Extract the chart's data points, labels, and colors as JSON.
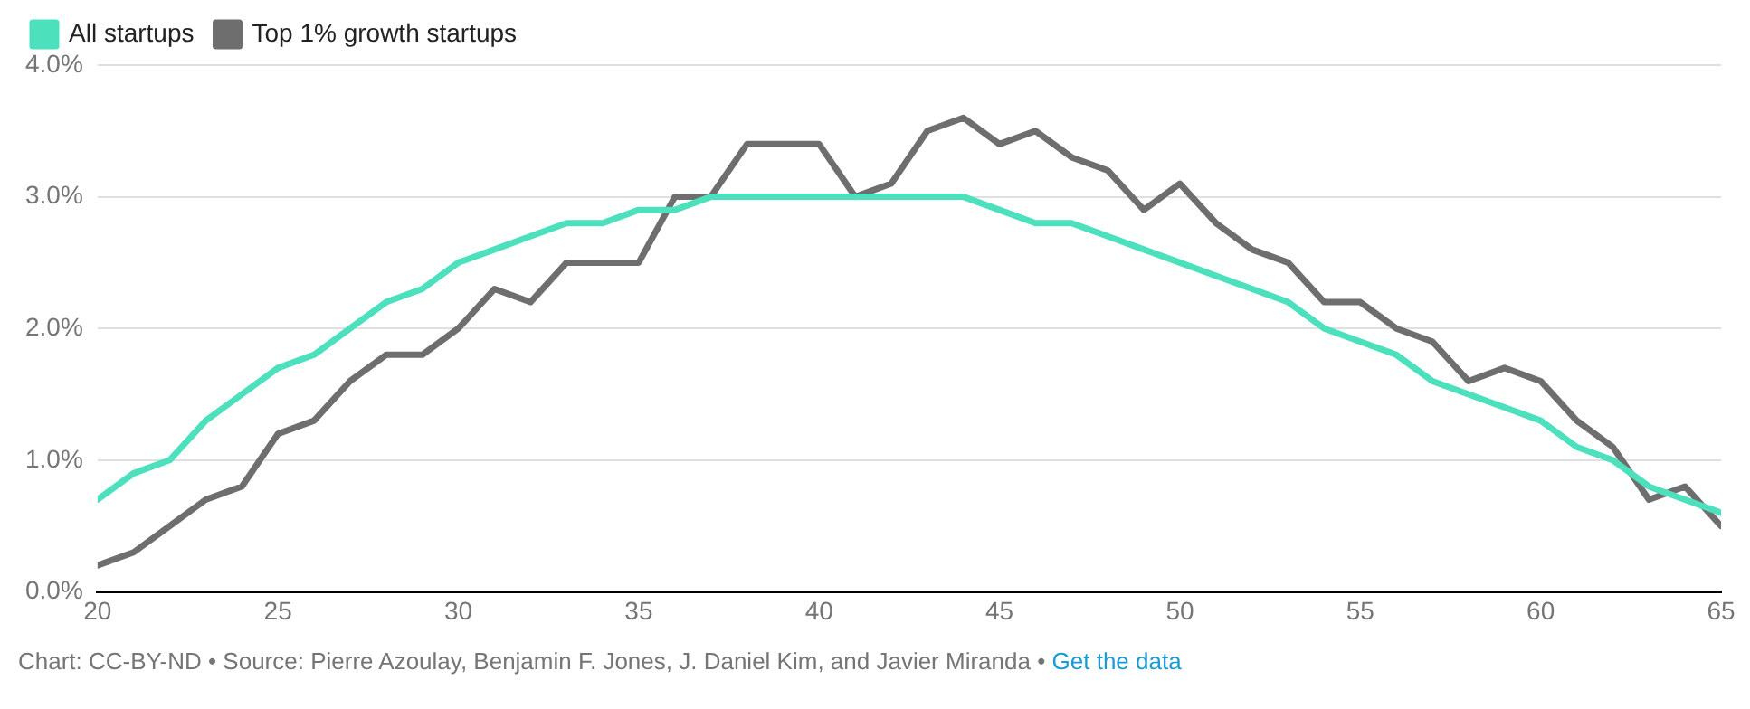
{
  "chart_data": {
    "type": "line",
    "x": [
      20,
      21,
      22,
      23,
      24,
      25,
      26,
      27,
      28,
      29,
      30,
      31,
      32,
      33,
      34,
      35,
      36,
      37,
      38,
      39,
      40,
      41,
      42,
      43,
      44,
      45,
      46,
      47,
      48,
      49,
      50,
      51,
      52,
      53,
      54,
      55,
      56,
      57,
      58,
      59,
      60,
      61,
      62,
      63,
      64,
      65
    ],
    "series": [
      {
        "name": "All startups",
        "color": "#4de0bd",
        "values": [
          0.7,
          0.9,
          1.0,
          1.3,
          1.5,
          1.7,
          1.8,
          2.0,
          2.2,
          2.3,
          2.5,
          2.6,
          2.7,
          2.8,
          2.8,
          2.9,
          2.9,
          3.0,
          3.0,
          3.0,
          3.0,
          3.0,
          3.0,
          3.0,
          3.0,
          2.9,
          2.8,
          2.8,
          2.7,
          2.6,
          2.5,
          2.4,
          2.3,
          2.2,
          2.0,
          1.9,
          1.8,
          1.6,
          1.5,
          1.4,
          1.3,
          1.1,
          1.0,
          0.8,
          0.7,
          0.6
        ]
      },
      {
        "name": "Top 1% growth startups",
        "color": "#6e6e6e",
        "values": [
          0.2,
          0.3,
          0.5,
          0.7,
          0.8,
          1.2,
          1.3,
          1.6,
          1.8,
          1.8,
          2.0,
          2.3,
          2.2,
          2.5,
          2.5,
          2.5,
          3.0,
          3.0,
          3.4,
          3.4,
          3.4,
          3.0,
          3.1,
          3.5,
          3.6,
          3.4,
          3.5,
          3.3,
          3.2,
          2.9,
          3.1,
          2.8,
          2.6,
          2.5,
          2.2,
          2.2,
          2.0,
          1.9,
          1.6,
          1.7,
          1.6,
          1.3,
          1.1,
          0.7,
          0.8,
          0.5
        ]
      }
    ],
    "xlim": [
      20,
      65
    ],
    "xticks": [
      20,
      25,
      30,
      35,
      40,
      45,
      50,
      55,
      60,
      65
    ],
    "ylim": [
      0,
      4
    ],
    "yticks": [
      {
        "value": 0,
        "label": "0.0%"
      },
      {
        "value": 1,
        "label": "1.0%"
      },
      {
        "value": 2,
        "label": "2.0%"
      },
      {
        "value": 3,
        "label": "3.0%"
      },
      {
        "value": 4,
        "label": "4.0%"
      }
    ],
    "grid": "y",
    "legend": "top left",
    "marker": "none",
    "line_style": "solid",
    "annotations": [
      "Chart: CC-BY-ND •",
      "Source: Pierre Azoulay, Benjamin F. Jones, J. Daniel Kim, and Javier Miranda •",
      "Get the data"
    ]
  }
}
